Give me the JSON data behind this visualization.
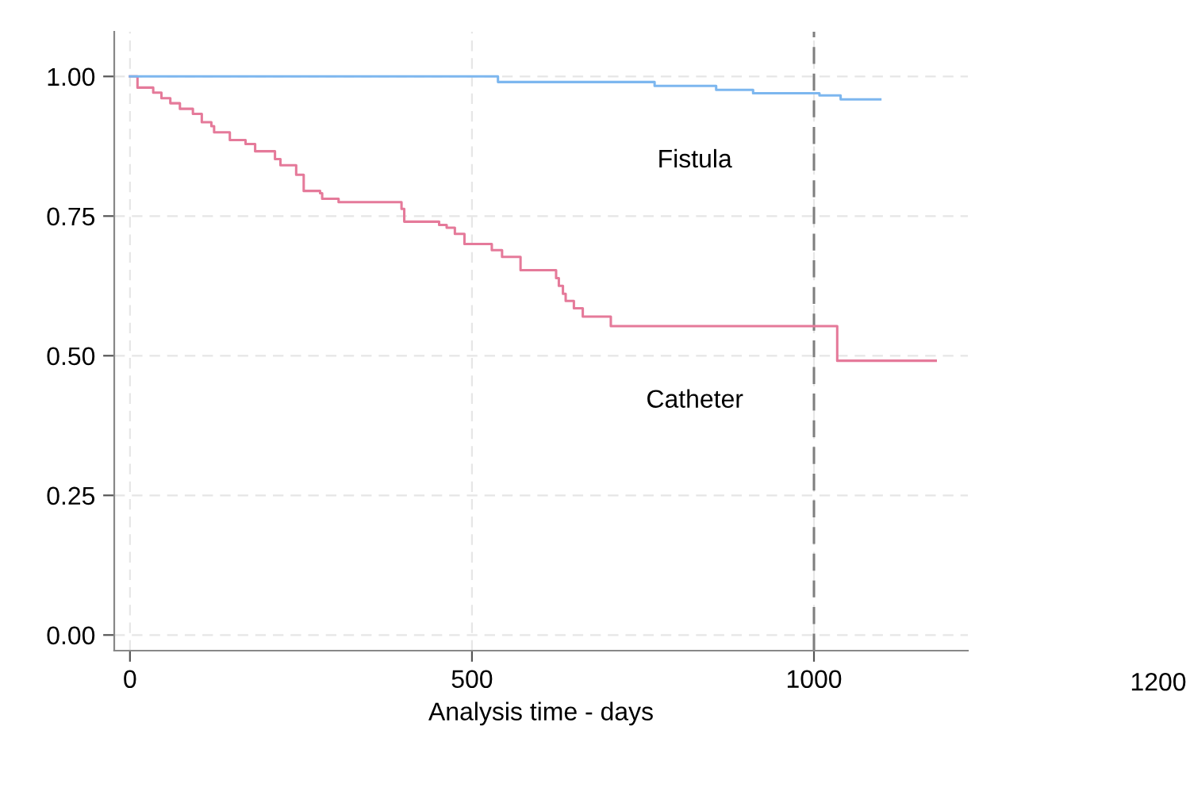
{
  "chart_data": {
    "type": "step",
    "xlabel": "Analysis time - days",
    "series": [
      {
        "name": "Fistula",
        "color": "#7db7ef",
        "x": [
          0,
          538,
          767,
          857,
          911,
          1008,
          1039,
          1097
        ],
        "values": [
          1.0,
          0.99,
          0.983,
          0.976,
          0.97,
          0.966,
          0.959,
          0.959
        ]
      },
      {
        "name": "Catheter",
        "color": "#e57a9a",
        "x": [
          0,
          11,
          34,
          46,
          59,
          73,
          92,
          105,
          119,
          123,
          146,
          169,
          183,
          212,
          220,
          243,
          254,
          278,
          281,
          305,
          397,
          401,
          452,
          463,
          475,
          489,
          529,
          544,
          571,
          623,
          627,
          633,
          637,
          649,
          662,
          703,
          1034,
          1178
        ],
        "values": [
          1.0,
          0.98,
          0.971,
          0.961,
          0.952,
          0.942,
          0.933,
          0.918,
          0.911,
          0.9,
          0.886,
          0.879,
          0.866,
          0.852,
          0.841,
          0.824,
          0.795,
          0.791,
          0.781,
          0.775,
          0.763,
          0.74,
          0.734,
          0.729,
          0.718,
          0.7,
          0.689,
          0.677,
          0.653,
          0.639,
          0.625,
          0.611,
          0.598,
          0.585,
          0.57,
          0.553,
          0.491,
          0.491
        ]
      }
    ],
    "annotations": [
      "1200"
    ],
    "ref_lines": [
      {
        "axis": "x",
        "value": 1000,
        "color": "#7f7f7f",
        "line_style": "dashed"
      }
    ],
    "xlim": [
      -23,
      1225
    ],
    "xticks": [
      0,
      500,
      1000
    ],
    "ylim": [
      -0.028,
      1.08
    ],
    "yticks": [
      {
        "value": 0,
        "label": "0.00"
      },
      {
        "value": 0.25,
        "label": "0.25"
      },
      {
        "value": 0.5,
        "label": "0.50"
      },
      {
        "value": 0.75,
        "label": "0.75"
      },
      {
        "value": 1,
        "label": "1.00"
      }
    ],
    "grid": true
  }
}
